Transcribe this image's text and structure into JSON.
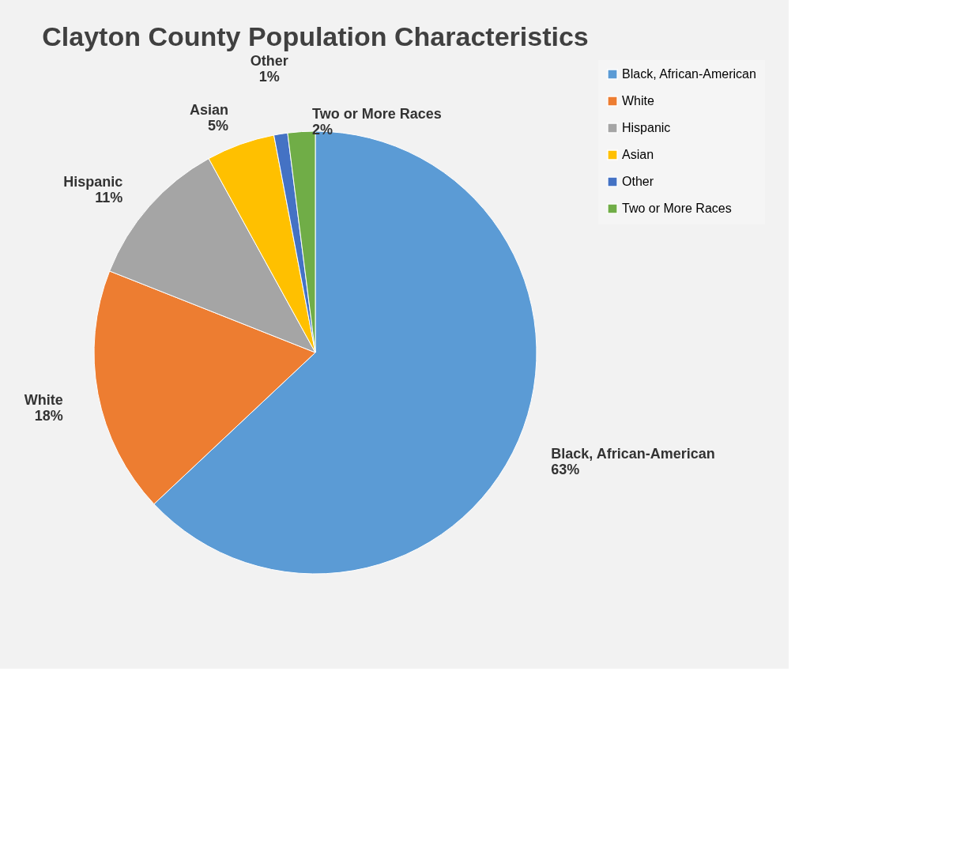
{
  "chart_data": {
    "type": "pie",
    "title": "Clayton County Population Characteristics",
    "categories": [
      "Black, African-American",
      "White",
      "Hispanic",
      "Asian",
      "Other",
      "Two or More Races"
    ],
    "values": [
      63,
      18,
      11,
      5,
      1,
      2
    ],
    "colors": [
      "#5b9bd5",
      "#ed7d31",
      "#a5a5a5",
      "#ffc000",
      "#4472c4",
      "#70ad47"
    ],
    "value_labels": [
      "63%",
      "18%",
      "11%",
      "5%",
      "1%",
      "2%"
    ],
    "legend": "right"
  }
}
